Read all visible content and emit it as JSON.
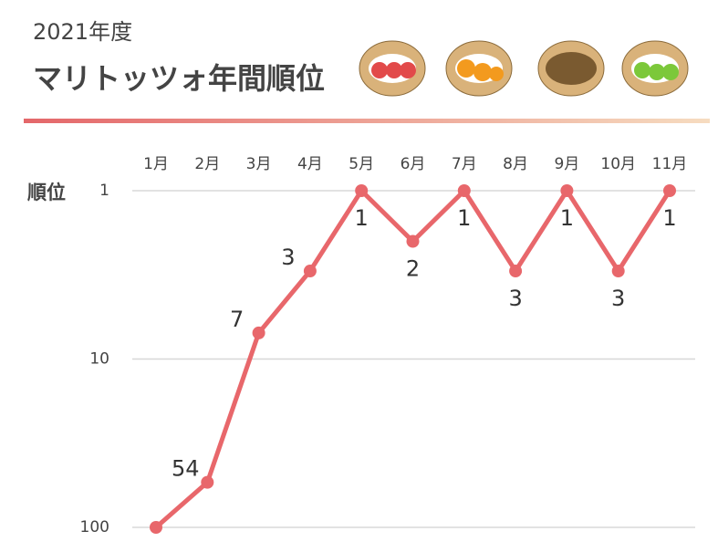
{
  "chart_data": {
    "type": "line",
    "subtitle": "2021年度",
    "title": "マリトッツォ年間順位",
    "y_label": "順位",
    "categories": [
      "1月",
      "2月",
      "3月",
      "4月",
      "5月",
      "6月",
      "7月",
      "8月",
      "9月",
      "10月",
      "11月"
    ],
    "values": [
      100,
      54,
      7,
      3,
      1,
      2,
      1,
      3,
      1,
      3,
      1
    ],
    "value_labels": [
      null,
      "54",
      "7",
      "3",
      "1",
      "2",
      "1",
      "3",
      "1",
      "3",
      "1"
    ],
    "color": "#e8676b",
    "ylim": [
      1,
      100
    ],
    "yticks": [
      1,
      10,
      100
    ],
    "log_scale": true,
    "y_reversed": true,
    "grid": true
  }
}
